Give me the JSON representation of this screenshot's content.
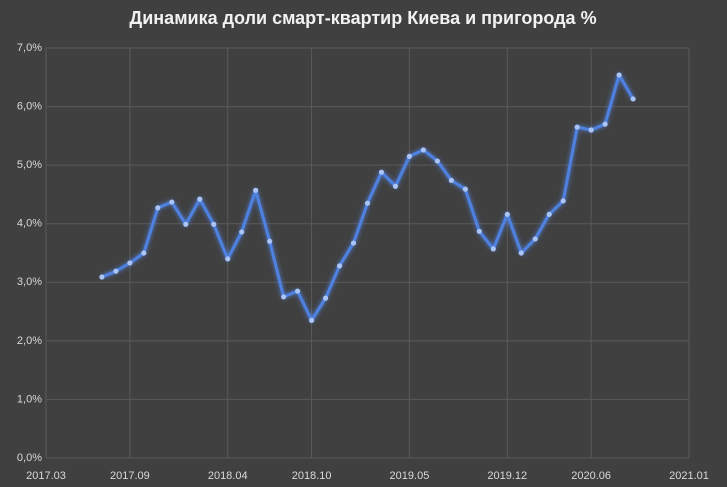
{
  "chart_data": {
    "type": "line",
    "title": "Динамика доли смарт-квартир Киева и пригорода %",
    "x": [
      "2017.07",
      "2017.08",
      "2017.09",
      "2017.10",
      "2017.11",
      "2017.12",
      "2018.01",
      "2018.02",
      "2018.03",
      "2018.04",
      "2018.05",
      "2018.06",
      "2018.07",
      "2018.08",
      "2018.09",
      "2018.10",
      "2018.11",
      "2018.12",
      "2019.01",
      "2019.02",
      "2019.03",
      "2019.04",
      "2019.05",
      "2019.06",
      "2019.07",
      "2019.08",
      "2019.09",
      "2019.10",
      "2019.11",
      "2019.12",
      "2020.01",
      "2020.02",
      "2020.03",
      "2020.04",
      "2020.05",
      "2020.06",
      "2020.07",
      "2020.08",
      "2020.09"
    ],
    "series": [
      {
        "color": "#4f81e0",
        "values": [
          3.09,
          3.19,
          3.33,
          3.5,
          4.27,
          4.37,
          3.99,
          4.42,
          3.99,
          3.4,
          3.86,
          4.57,
          3.7,
          2.75,
          2.85,
          2.35,
          2.73,
          3.28,
          3.67,
          4.35,
          4.88,
          4.64,
          5.15,
          5.26,
          5.07,
          4.74,
          4.59,
          3.87,
          3.57,
          4.16,
          3.5,
          3.74,
          4.16,
          4.39,
          5.65,
          5.6,
          5.7,
          6.54,
          6.13
        ]
      }
    ],
    "xlim": [
      "2017.03",
      "2021.01"
    ],
    "xticks": [
      "2017.03",
      "2017.09",
      "2018.04",
      "2018.10",
      "2019.05",
      "2019.12",
      "2020.06",
      "2021.01"
    ],
    "ylim": [
      0,
      7
    ],
    "yticks": [
      {
        "value": 0,
        "label": "0,0%"
      },
      {
        "value": 1,
        "label": "1,0%"
      },
      {
        "value": 2,
        "label": "2,0%"
      },
      {
        "value": 3,
        "label": "3,0%"
      },
      {
        "value": 4,
        "label": "4,0%"
      },
      {
        "value": 5,
        "label": "5,0%"
      },
      {
        "value": 6,
        "label": "6,0%"
      },
      {
        "value": 7,
        "label": "7,0%"
      }
    ],
    "grid": true
  }
}
